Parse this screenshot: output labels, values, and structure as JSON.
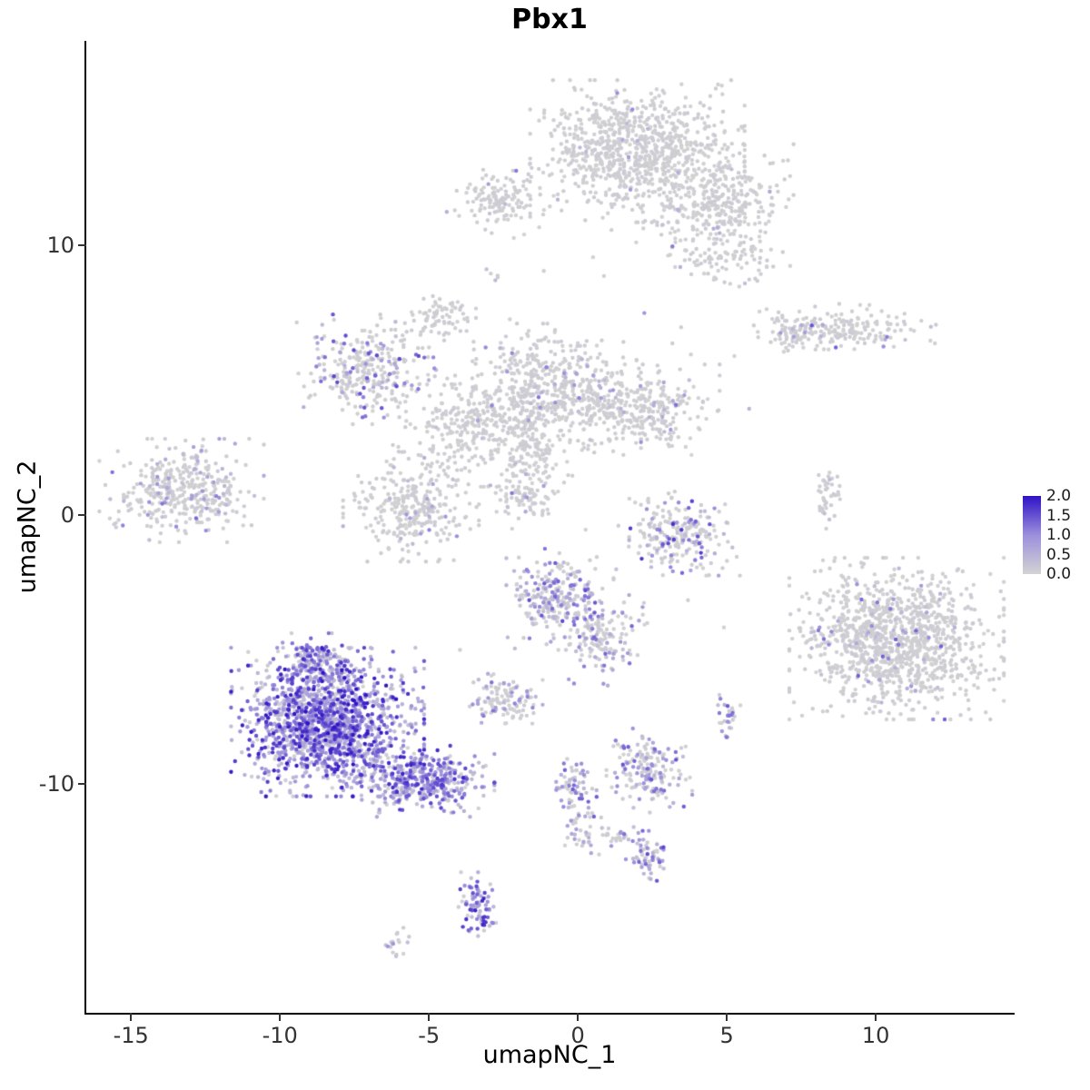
{
  "chart": {
    "title": "Pbx1",
    "xlabel": "umapNC_1",
    "ylabel": "umapNC_2"
  },
  "chart_data": {
    "type": "scatter",
    "title": "Pbx1",
    "subtitle": "",
    "xlabel": "umapNC_1",
    "ylabel": "umapNC_2",
    "xlim": [
      -16.5,
      14.6
    ],
    "ylim": [
      -18.5,
      17.6
    ],
    "x_ticks": [
      -15,
      -10,
      -5,
      0,
      5,
      10
    ],
    "y_ticks": [
      -10,
      0,
      10
    ],
    "grid": false,
    "background": "#FFFFFF",
    "axis_color": "#000000",
    "tick_label_color": "#333333",
    "point_radius_px": 2.2,
    "legend": {
      "position": "right",
      "title": "",
      "ticks": [
        "2.0",
        "1.5",
        "1.0",
        "0.5",
        "0.0"
      ],
      "values": [
        2.0,
        1.5,
        1.0,
        0.5,
        0.0
      ],
      "vmin": 0.0,
      "vmax": 2.0,
      "color_low": "#D3D3D3",
      "color_mid": "#9C8FDC",
      "color_high": "#2F12C6"
    },
    "series_note": "UMAP feature plot of Pbx1 expression; clusters given as gaussian blobs: center (cx,cy), sd (sx,sy), n cells, p = fraction expressing, emax = max expression level",
    "clusters": [
      {
        "name": "top-main",
        "cx": 2.0,
        "cy": 13.5,
        "sx": 1.5,
        "sy": 1.1,
        "n": 850,
        "p": 0.02,
        "emax": 1.2
      },
      {
        "name": "top-main-right-arm",
        "cx": 4.6,
        "cy": 11.6,
        "sx": 1.1,
        "sy": 0.9,
        "n": 320,
        "p": 0.02,
        "emax": 1.2
      },
      {
        "name": "top-left-small",
        "cx": -2.6,
        "cy": 11.7,
        "sx": 0.75,
        "sy": 0.55,
        "n": 130,
        "p": 0.03,
        "emax": 1.5
      },
      {
        "name": "top-right-streak",
        "cx": 5.0,
        "cy": 9.6,
        "sx": 0.9,
        "sy": 0.5,
        "n": 90,
        "p": 0.05,
        "emax": 1.3
      },
      {
        "name": "single-upper",
        "cx": -2.9,
        "cy": 8.9,
        "sx": 0.15,
        "sy": 0.15,
        "n": 5,
        "p": 0.5,
        "emax": 1.4
      },
      {
        "name": "right-elongated",
        "cx": 8.9,
        "cy": 6.9,
        "sx": 1.3,
        "sy": 0.4,
        "n": 190,
        "p": 0.04,
        "emax": 1.6
      },
      {
        "name": "right-elongated-tip",
        "cx": 7.3,
        "cy": 6.6,
        "sx": 0.4,
        "sy": 0.3,
        "n": 40,
        "p": 0.05,
        "emax": 1.0
      },
      {
        "name": "small-blob-upper-mid",
        "cx": -4.5,
        "cy": 7.4,
        "sx": 0.45,
        "sy": 0.3,
        "n": 70,
        "p": 0.01,
        "emax": 0.8
      },
      {
        "name": "left-mid-purple",
        "cx": -7.0,
        "cy": 5.4,
        "sx": 1.05,
        "sy": 0.85,
        "n": 300,
        "p": 0.3,
        "emax": 1.6
      },
      {
        "name": "central-grey",
        "cx": -1.0,
        "cy": 4.7,
        "sx": 1.3,
        "sy": 1.0,
        "n": 480,
        "p": 0.04,
        "emax": 1.2
      },
      {
        "name": "central-grey-left-arm",
        "cx": -3.6,
        "cy": 3.2,
        "sx": 1.1,
        "sy": 0.9,
        "n": 260,
        "p": 0.03,
        "emax": 1.0
      },
      {
        "name": "central-grey-lower-arm",
        "cx": -1.6,
        "cy": 2.2,
        "sx": 0.7,
        "sy": 0.9,
        "n": 160,
        "p": 0.04,
        "emax": 1.0
      },
      {
        "name": "right-of-center",
        "cx": 2.0,
        "cy": 3.9,
        "sx": 1.15,
        "sy": 0.7,
        "n": 310,
        "p": 0.05,
        "emax": 1.5
      },
      {
        "name": "far-left",
        "cx": -13.3,
        "cy": 0.9,
        "sx": 1.15,
        "sy": 0.8,
        "n": 380,
        "p": 0.18,
        "emax": 1.3
      },
      {
        "name": "mid-left-grey",
        "cx": -5.6,
        "cy": 0.3,
        "sx": 0.95,
        "sy": 0.85,
        "n": 300,
        "p": 0.05,
        "emax": 1.2
      },
      {
        "name": "diag-streak",
        "cx": -1.8,
        "cy": 0.7,
        "sx": 0.4,
        "sy": 0.35,
        "n": 60,
        "p": 0.1,
        "emax": 1.2
      },
      {
        "name": "mid-right-cluster",
        "cx": 3.4,
        "cy": -0.7,
        "sx": 0.85,
        "sy": 0.65,
        "n": 230,
        "p": 0.3,
        "emax": 1.8
      },
      {
        "name": "tiny-vertical-right",
        "cx": 8.4,
        "cy": 0.8,
        "sx": 0.18,
        "sy": 0.55,
        "n": 45,
        "p": 0.05,
        "emax": 0.8
      },
      {
        "name": "center-low-mixed",
        "cx": -0.6,
        "cy": -3.1,
        "sx": 0.75,
        "sy": 0.8,
        "n": 270,
        "p": 0.45,
        "emax": 1.6
      },
      {
        "name": "center-low-tail",
        "cx": 0.8,
        "cy": -4.6,
        "sx": 0.6,
        "sy": 0.7,
        "n": 140,
        "p": 0.35,
        "emax": 1.4
      },
      {
        "name": "right-large",
        "cx": 10.7,
        "cy": -4.6,
        "sx": 1.5,
        "sy": 1.25,
        "n": 1150,
        "p": 0.05,
        "emax": 1.4
      },
      {
        "name": "purple-main",
        "cx": -8.4,
        "cy": -7.7,
        "sx": 1.35,
        "sy": 1.15,
        "n": 1500,
        "p": 0.88,
        "emax": 2.0
      },
      {
        "name": "purple-top-spike",
        "cx": -8.9,
        "cy": -5.6,
        "sx": 0.55,
        "sy": 0.5,
        "n": 140,
        "p": 0.85,
        "emax": 1.8
      },
      {
        "name": "purple-tail",
        "cx": -5.2,
        "cy": -9.9,
        "sx": 1.0,
        "sy": 0.55,
        "n": 400,
        "p": 0.85,
        "emax": 1.9
      },
      {
        "name": "small-grey-low",
        "cx": -2.5,
        "cy": -6.9,
        "sx": 0.55,
        "sy": 0.45,
        "n": 110,
        "p": 0.3,
        "emax": 1.3
      },
      {
        "name": "pair-right-low",
        "cx": 5.0,
        "cy": -7.4,
        "sx": 0.25,
        "sy": 0.45,
        "n": 28,
        "p": 0.5,
        "emax": 1.5
      },
      {
        "name": "low-mid-cluster",
        "cx": 2.4,
        "cy": -9.5,
        "sx": 0.6,
        "sy": 0.65,
        "n": 170,
        "p": 0.45,
        "emax": 1.5
      },
      {
        "name": "streak-upper",
        "cx": -0.2,
        "cy": -9.9,
        "sx": 0.3,
        "sy": 0.45,
        "n": 55,
        "p": 0.5,
        "emax": 1.4
      },
      {
        "name": "streak-lower",
        "cx": 0.1,
        "cy": -11.4,
        "sx": 0.3,
        "sy": 0.55,
        "n": 50,
        "p": 0.5,
        "emax": 1.4
      },
      {
        "name": "bridge-dots",
        "cx": 1.3,
        "cy": -12.0,
        "sx": 0.35,
        "sy": 0.25,
        "n": 25,
        "p": 0.5,
        "emax": 1.3
      },
      {
        "name": "small-purple-low",
        "cx": 2.3,
        "cy": -12.7,
        "sx": 0.3,
        "sy": 0.4,
        "n": 60,
        "p": 0.6,
        "emax": 1.7
      },
      {
        "name": "bottom-purple",
        "cx": -3.4,
        "cy": -14.6,
        "sx": 0.3,
        "sy": 0.55,
        "n": 85,
        "p": 0.85,
        "emax": 2.0
      },
      {
        "name": "bottom-tiny",
        "cx": -6.1,
        "cy": -15.9,
        "sx": 0.22,
        "sy": 0.28,
        "n": 18,
        "p": 0.3,
        "emax": 1.0
      },
      {
        "name": "sparse-singles-low",
        "cx": 0.0,
        "cy": -2.0,
        "sx": 4.0,
        "sy": 3.0,
        "n": 22,
        "p": 0.2,
        "emax": 1.0
      },
      {
        "name": "sparse-singles-upper",
        "cx": 0.0,
        "cy": 6.5,
        "sx": 3.0,
        "sy": 1.8,
        "n": 25,
        "p": 0.05,
        "emax": 1.0
      }
    ]
  }
}
